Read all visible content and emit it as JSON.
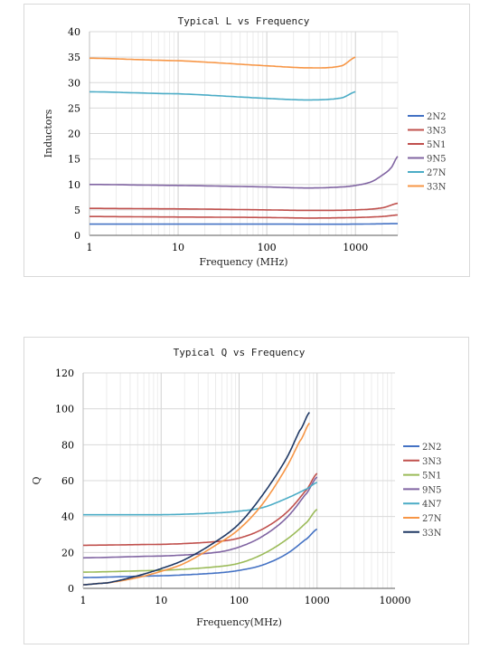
{
  "chart_data": [
    {
      "type": "line",
      "title": "Typical L vs Frequency",
      "xlabel": "Frequency (MHz)",
      "ylabel": "Inductors",
      "xscale": "log",
      "xlim": [
        1,
        3000
      ],
      "ylim": [
        0,
        40
      ],
      "xticks": [
        "1",
        "10",
        "100",
        "1000"
      ],
      "yticks": [
        "0",
        "5",
        "10",
        "15",
        "20",
        "25",
        "30",
        "35",
        "40"
      ],
      "grid": true,
      "legend_position": "right",
      "series": [
        {
          "name": "2N2",
          "color": "#4472c4",
          "x": [
            1,
            10,
            100,
            1000,
            3000
          ],
          "y": [
            2.2,
            2.2,
            2.2,
            2.2,
            2.3
          ]
        },
        {
          "name": "3N3",
          "color": "#c0504d",
          "x": [
            1,
            10,
            100,
            300,
            1000,
            2000,
            3000
          ],
          "y": [
            3.7,
            3.6,
            3.5,
            3.4,
            3.5,
            3.7,
            4.0
          ]
        },
        {
          "name": "5N1",
          "color": "#c0504d",
          "x": [
            1,
            10,
            100,
            300,
            1000,
            2000,
            3000
          ],
          "y": [
            5.3,
            5.2,
            5.0,
            4.9,
            5.0,
            5.4,
            6.3
          ]
        },
        {
          "name": "9N5",
          "color": "#8064a2",
          "x": [
            1,
            10,
            100,
            300,
            700,
            1000,
            1500,
            2000,
            2500,
            3000
          ],
          "y": [
            10.0,
            9.8,
            9.5,
            9.3,
            9.5,
            9.8,
            10.5,
            11.8,
            13.2,
            15.5
          ]
        },
        {
          "name": "27N",
          "color": "#4bacc6",
          "x": [
            1,
            10,
            100,
            300,
            700,
            1000
          ],
          "y": [
            28.2,
            27.8,
            26.9,
            26.6,
            27.0,
            28.2
          ]
        },
        {
          "name": "33N",
          "color": "#f79646",
          "x": [
            1,
            10,
            100,
            300,
            700,
            1000
          ],
          "y": [
            34.8,
            34.3,
            33.3,
            32.9,
            33.3,
            35.0
          ]
        }
      ]
    },
    {
      "type": "line",
      "title": "Typical Q vs Frequency",
      "xlabel": "Frequency(MHz)",
      "ylabel": "Q",
      "xscale": "log",
      "xlim": [
        1,
        10000
      ],
      "ylim": [
        0,
        120
      ],
      "xticks": [
        "1",
        "10",
        "100",
        "1000",
        "10000"
      ],
      "yticks": [
        "0",
        "20",
        "40",
        "60",
        "80",
        "100",
        "120"
      ],
      "grid": true,
      "legend_position": "right",
      "series": [
        {
          "name": "2N2",
          "color": "#4472c4",
          "x": [
            1,
            10,
            50,
            100,
            200,
            400,
            700,
            1000
          ],
          "y": [
            6,
            7,
            8.5,
            10,
            13,
            19,
            27,
            33
          ]
        },
        {
          "name": "3N3",
          "color": "#c0504d",
          "x": [
            1,
            10,
            50,
            100,
            200,
            400,
            700,
            1000
          ],
          "y": [
            24,
            24.5,
            26,
            28,
            33,
            42,
            54,
            64
          ]
        },
        {
          "name": "5N1",
          "color": "#9bbb59",
          "x": [
            1,
            10,
            50,
            100,
            200,
            400,
            700,
            1000
          ],
          "y": [
            9,
            10,
            12,
            14,
            19,
            27,
            36,
            44
          ]
        },
        {
          "name": "9N5",
          "color": "#8064a2",
          "x": [
            1,
            10,
            50,
            100,
            200,
            400,
            700,
            1000
          ],
          "y": [
            17,
            18,
            20,
            23,
            29,
            39,
            52,
            62
          ]
        },
        {
          "name": "4N7",
          "color": "#4bacc6",
          "x": [
            1,
            10,
            50,
            100,
            200,
            400,
            700,
            1000
          ],
          "y": [
            41,
            41,
            42,
            43,
            45,
            50,
            55,
            59
          ]
        },
        {
          "name": "27N",
          "color": "#f79646",
          "x": [
            1,
            2,
            5,
            10,
            20,
            50,
            100,
            200,
            400,
            600,
            800
          ],
          "y": [
            2,
            3,
            6,
            9.5,
            14,
            24,
            33,
            47,
            67,
            82,
            92
          ]
        },
        {
          "name": "33N",
          "color": "#1f3864",
          "x": [
            1,
            2,
            5,
            10,
            20,
            50,
            100,
            200,
            400,
            600,
            800
          ],
          "y": [
            2,
            3,
            7,
            11,
            16,
            26,
            36,
            52,
            72,
            88,
            98
          ]
        }
      ]
    }
  ]
}
